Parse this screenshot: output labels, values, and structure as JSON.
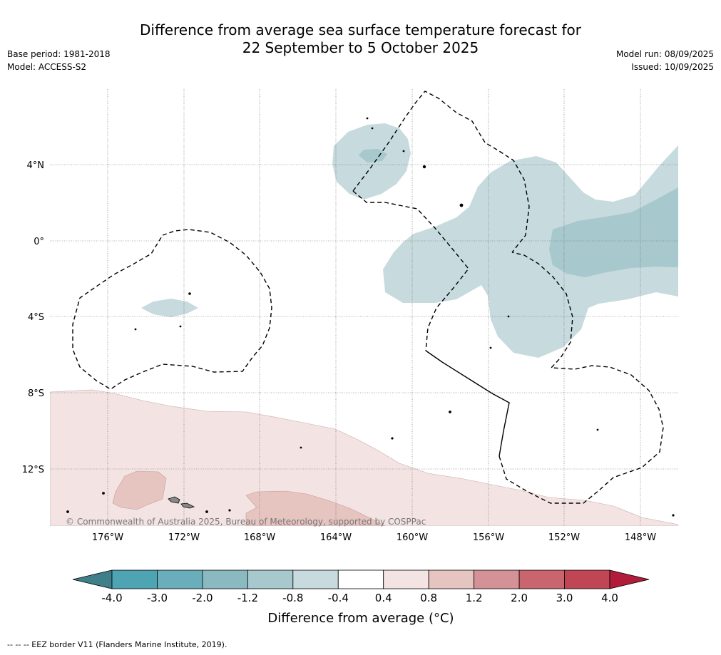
{
  "header": {
    "title_line1": "Difference from average sea surface temperature forecast for",
    "title_line2": "22 September to 5 October 2025",
    "base_period": "Base period: 1981-2018",
    "model": "Model: ACCESS-S2",
    "model_run": "Model run: 08/09/2025",
    "issued": "Issued: 10/09/2025"
  },
  "map": {
    "lon_labels": [
      "176°W",
      "172°W",
      "168°W",
      "164°W",
      "160°W",
      "156°W",
      "152°W",
      "148°W"
    ],
    "lat_labels": [
      "4°N",
      "0°",
      "4°S",
      "8°S",
      "12°S"
    ],
    "copyright": "© Commonwealth of Australia 2025, Bureau of Meteorology, supported by COSPPac"
  },
  "colorbar": {
    "label": "Difference from average (°C)",
    "ticks": [
      "-4.0",
      "-3.0",
      "-2.0",
      "-1.2",
      "-0.8",
      "-0.4",
      "0.4",
      "0.8",
      "1.2",
      "2.0",
      "3.0",
      "4.0"
    ],
    "colors": [
      "#3e7f8a",
      "#4ea4b3",
      "#6aaebb",
      "#8ab9c0",
      "#a7c8cc",
      "#c7dadd",
      "#ffffff",
      "#f3e4e3",
      "#e6c4c0",
      "#d59296",
      "#c9656f",
      "#c04656",
      "#b01c3a"
    ]
  },
  "footnote": "-- -- -- EEZ border V11 (Flanders Marine Institute, 2019)."
}
